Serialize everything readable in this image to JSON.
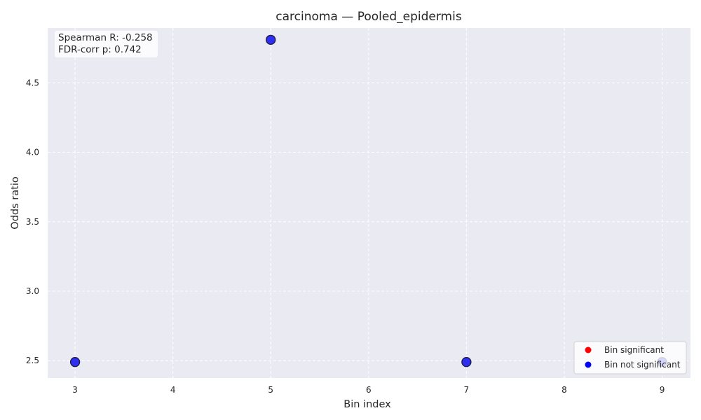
{
  "chart_data": {
    "type": "scatter",
    "title": "carcinoma — Pooled_epidermis",
    "xlabel": "Bin index",
    "ylabel": "Odds ratio",
    "xlim": [
      2.72,
      9.29
    ],
    "ylim": [
      2.375,
      4.895
    ],
    "xticks": [
      3,
      4,
      5,
      6,
      7,
      8,
      9
    ],
    "yticks": [
      2.5,
      3.0,
      3.5,
      4.0,
      4.5
    ],
    "grid": true,
    "background_color": "#eaeaf2",
    "points": [
      {
        "x": 3,
        "y": 2.49,
        "significant": false
      },
      {
        "x": 5,
        "y": 4.81,
        "significant": false
      },
      {
        "x": 7,
        "y": 2.49,
        "significant": false
      },
      {
        "x": 9,
        "y": 2.49,
        "significant": false
      }
    ],
    "annotation": {
      "spearman": "Spearman R: -0.258",
      "fdr": "FDR-corr p: 0.742"
    },
    "legend": {
      "placement": "lower-right",
      "entries": [
        {
          "label": "Bin significant",
          "color": "#ff0000"
        },
        {
          "label": "Bin not significant",
          "color": "#0000ff"
        }
      ]
    },
    "point_color": "#2f2ff2",
    "point_edge_color": "#1a1a40"
  }
}
